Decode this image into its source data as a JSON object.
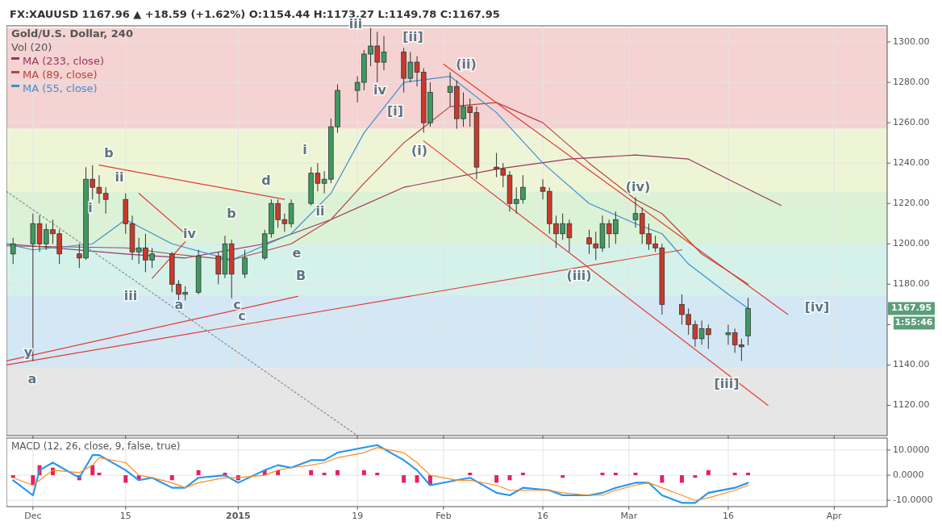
{
  "chart_data": [
    {
      "type": "candlestick",
      "title": "FX:XAUUSD 1167.96 ▲ +18.59 (+1.62%) O:1154.44 H:1173.27 L:1149.78 C:1167.95",
      "subtitle": "Gold/U.S. Dollar, 240",
      "x": [
        "2014-11-28",
        "2014-12-01",
        "2014-12-02",
        "2014-12-03",
        "2014-12-04",
        "2014-12-05",
        "2014-12-08",
        "2014-12-09",
        "2014-12-10",
        "2014-12-11",
        "2014-12-12",
        "2014-12-15",
        "2014-12-16",
        "2014-12-17",
        "2014-12-18",
        "2014-12-19",
        "2014-12-22",
        "2014-12-23",
        "2014-12-24",
        "2014-12-26",
        "2014-12-29",
        "2014-12-30",
        "2014-12-31",
        "2015-01-02",
        "2015-01-05",
        "2015-01-06",
        "2015-01-07",
        "2015-01-08",
        "2015-01-09",
        "2015-01-12",
        "2015-01-13",
        "2015-01-14",
        "2015-01-15",
        "2015-01-16",
        "2015-01-19",
        "2015-01-20",
        "2015-01-21",
        "2015-01-22",
        "2015-01-23",
        "2015-01-26",
        "2015-01-27",
        "2015-01-28",
        "2015-01-29",
        "2015-01-30",
        "2015-02-02",
        "2015-02-03",
        "2015-02-04",
        "2015-02-05",
        "2015-02-06",
        "2015-02-09",
        "2015-02-10",
        "2015-02-11",
        "2015-02-12",
        "2015-02-13",
        "2015-02-16",
        "2015-02-17",
        "2015-02-18",
        "2015-02-19",
        "2015-02-20",
        "2015-02-23",
        "2015-02-24",
        "2015-02-25",
        "2015-02-26",
        "2015-02-27",
        "2015-03-02",
        "2015-03-03",
        "2015-03-04",
        "2015-03-05",
        "2015-03-06",
        "2015-03-09",
        "2015-03-10",
        "2015-03-11",
        "2015-03-12",
        "2015-03-13",
        "2015-03-16",
        "2015-03-17",
        "2015-03-18",
        "2015-03-19"
      ],
      "ohlc": [
        [
          1195,
          1203,
          1190,
          1200
        ],
        [
          1200,
          1215,
          1142,
          1210
        ],
        [
          1210,
          1214,
          1196,
          1200
        ],
        [
          1200,
          1210,
          1197,
          1207
        ],
        [
          1207,
          1212,
          1200,
          1205
        ],
        [
          1205,
          1207,
          1190,
          1195
        ],
        [
          1195,
          1200,
          1188,
          1193
        ],
        [
          1193,
          1238,
          1192,
          1232
        ],
        [
          1232,
          1239,
          1222,
          1228
        ],
        [
          1228,
          1234,
          1220,
          1225
        ],
        [
          1225,
          1228,
          1215,
          1222
        ],
        [
          1222,
          1225,
          1205,
          1210
        ],
        [
          1210,
          1214,
          1192,
          1196
        ],
        [
          1196,
          1203,
          1190,
          1198
        ],
        [
          1198,
          1205,
          1186,
          1192
        ],
        [
          1192,
          1198,
          1188,
          1195
        ],
        [
          1195,
          1196,
          1176,
          1180
        ],
        [
          1180,
          1182,
          1172,
          1175
        ],
        [
          1175,
          1179,
          1172,
          1176
        ],
        [
          1176,
          1197,
          1175,
          1194
        ],
        [
          1194,
          1196,
          1180,
          1185
        ],
        [
          1185,
          1204,
          1183,
          1200
        ],
        [
          1200,
          1202,
          1173,
          1185
        ],
        [
          1185,
          1197,
          1183,
          1193
        ],
        [
          1193,
          1207,
          1192,
          1205
        ],
        [
          1205,
          1222,
          1203,
          1220
        ],
        [
          1220,
          1222,
          1208,
          1212
        ],
        [
          1212,
          1215,
          1206,
          1210
        ],
        [
          1210,
          1222,
          1208,
          1220
        ],
        [
          1220,
          1238,
          1219,
          1235
        ],
        [
          1235,
          1240,
          1226,
          1230
        ],
        [
          1230,
          1236,
          1225,
          1232
        ],
        [
          1232,
          1262,
          1230,
          1258
        ],
        [
          1258,
          1279,
          1255,
          1276
        ],
        [
          1276,
          1283,
          1270,
          1280
        ],
        [
          1280,
          1296,
          1276,
          1294
        ],
        [
          1294,
          1307,
          1288,
          1298
        ],
        [
          1298,
          1305,
          1280,
          1290
        ],
        [
          1290,
          1303,
          1286,
          1295
        ],
        [
          1295,
          1297,
          1275,
          1282
        ],
        [
          1282,
          1295,
          1280,
          1290
        ],
        [
          1290,
          1293,
          1278,
          1285
        ],
        [
          1285,
          1287,
          1255,
          1260
        ],
        [
          1260,
          1280,
          1258,
          1275
        ],
        [
          1275,
          1285,
          1268,
          1278
        ],
        [
          1278,
          1281,
          1257,
          1262
        ],
        [
          1262,
          1275,
          1258,
          1268
        ],
        [
          1268,
          1272,
          1258,
          1265
        ],
        [
          1265,
          1268,
          1232,
          1238
        ],
        [
          1238,
          1245,
          1233,
          1237
        ],
        [
          1237,
          1240,
          1228,
          1234
        ],
        [
          1234,
          1236,
          1216,
          1220
        ],
        [
          1220,
          1228,
          1215,
          1222
        ],
        [
          1222,
          1234,
          1220,
          1228
        ],
        [
          1228,
          1232,
          1222,
          1226
        ],
        [
          1226,
          1228,
          1205,
          1210
        ],
        [
          1210,
          1214,
          1198,
          1205
        ],
        [
          1205,
          1215,
          1202,
          1210
        ],
        [
          1210,
          1212,
          1196,
          1203
        ],
        [
          1203,
          1207,
          1195,
          1200
        ],
        [
          1200,
          1206,
          1192,
          1198
        ],
        [
          1198,
          1214,
          1196,
          1210
        ],
        [
          1210,
          1212,
          1198,
          1205
        ],
        [
          1205,
          1216,
          1200,
          1212
        ],
        [
          1212,
          1223,
          1208,
          1215
        ],
        [
          1215,
          1218,
          1200,
          1205
        ],
        [
          1205,
          1210,
          1197,
          1200
        ],
        [
          1200,
          1204,
          1196,
          1198
        ],
        [
          1198,
          1200,
          1165,
          1170
        ],
        [
          1170,
          1175,
          1160,
          1165
        ],
        [
          1165,
          1168,
          1155,
          1160
        ],
        [
          1160,
          1162,
          1149,
          1153
        ],
        [
          1153,
          1162,
          1150,
          1158
        ],
        [
          1158,
          1160,
          1148,
          1155
        ],
        [
          1155,
          1160,
          1150,
          1156
        ],
        [
          1156,
          1158,
          1146,
          1150
        ],
        [
          1150,
          1153,
          1142,
          1149
        ],
        [
          1154.44,
          1173.27,
          1149.78,
          1167.95
        ]
      ],
      "series": [
        {
          "type": "line",
          "name": "MA (233, close)",
          "color": "#9b3560",
          "x": [
            "2014-11-27",
            "2014-12-15",
            "2014-12-24",
            "2015-01-05",
            "2015-01-15",
            "2015-01-26",
            "2015-02-09",
            "2015-02-20",
            "2015-03-02",
            "2015-03-10",
            "2015-03-16",
            "2015-03-24"
          ],
          "values": [
            1200,
            1195,
            1193,
            1200,
            1212,
            1228,
            1237,
            1242,
            1244,
            1242,
            1232,
            1219
          ]
        },
        {
          "type": "line",
          "name": "MA (89, close)",
          "color": "#b5463a",
          "x": [
            "2014-11-27",
            "2014-12-15",
            "2014-12-22",
            "2014-12-31",
            "2015-01-09",
            "2015-01-15",
            "2015-01-20",
            "2015-01-26",
            "2015-02-02",
            "2015-02-09",
            "2015-02-16",
            "2015-02-23",
            "2015-03-02",
            "2015-03-06",
            "2015-03-12",
            "2015-03-19"
          ],
          "values": [
            1199,
            1198,
            1195,
            1192,
            1200,
            1212,
            1230,
            1250,
            1268,
            1270,
            1260,
            1240,
            1222,
            1215,
            1195,
            1180
          ]
        },
        {
          "type": "line",
          "name": "MA (55, close)",
          "color": "#3d8fd1",
          "x": [
            "2014-11-27",
            "2014-12-01",
            "2014-12-10",
            "2014-12-15",
            "2014-12-22",
            "2014-12-31",
            "2015-01-09",
            "2015-01-15",
            "2015-01-20",
            "2015-01-26",
            "2015-02-02",
            "2015-02-09",
            "2015-02-16",
            "2015-02-23",
            "2015-03-02",
            "2015-03-06",
            "2015-03-10",
            "2015-03-16",
            "2015-03-19"
          ],
          "values": [
            1200,
            1197,
            1200,
            1212,
            1200,
            1192,
            1205,
            1225,
            1255,
            1280,
            1283,
            1265,
            1240,
            1220,
            1210,
            1205,
            1190,
            1175,
            1168
          ]
        },
        {
          "type": "line",
          "color": "#e53935",
          "x": [
            "2015-02-01",
            "2015-03-25"
          ],
          "values": [
            1289,
            1165
          ]
        },
        {
          "type": "line",
          "color": "#e53935",
          "x": [
            "2015-01-29",
            "2015-03-22"
          ],
          "values": [
            1251,
            1120
          ]
        },
        {
          "type": "line",
          "color": "#e53935",
          "x": [
            "2014-11-27",
            "2015-03-09"
          ],
          "values": [
            1140,
            1197
          ]
        },
        {
          "type": "line",
          "color": "#e53935",
          "x": [
            "2014-11-27",
            "2015-01-10"
          ],
          "values": [
            1142,
            1174
          ]
        },
        {
          "type": "line",
          "color": "#e53935",
          "x": [
            "2014-12-11",
            "2015-01-08"
          ],
          "values": [
            1239,
            1222
          ]
        },
        {
          "type": "line",
          "color": "#e53935",
          "x": [
            "2014-12-17",
            "2014-12-24"
          ],
          "values": [
            1225,
            1205
          ]
        },
        {
          "type": "line",
          "color": "#e53935",
          "x": [
            "2014-12-19",
            "2014-12-24"
          ],
          "values": [
            1183,
            1201
          ]
        },
        {
          "type": "line",
          "color": "#8a8a8a",
          "line_style": "dotted",
          "x": [
            "2014-11-27",
            "2015-01-19"
          ],
          "values": [
            1226,
            1105
          ]
        }
      ],
      "bands": [
        {
          "axis": "y",
          "from": 1257,
          "to": 1307,
          "color": "#f4d3d2"
        },
        {
          "axis": "y",
          "from": 1226,
          "to": 1257,
          "color": "#eef5d6"
        },
        {
          "axis": "y",
          "from": 1200,
          "to": 1226,
          "color": "#dcf2d6"
        },
        {
          "axis": "y",
          "from": 1174.5,
          "to": 1200,
          "color": "#d4f2ea"
        },
        {
          "axis": "y",
          "from": 1138.5,
          "to": 1174.5,
          "color": "#d3e8f4"
        },
        {
          "axis": "y",
          "from": 1105,
          "to": 1138.5,
          "color": "#e6e6e6"
        }
      ],
      "annotations": [
        "Vol (20)",
        "1:55:46",
        "1167.95",
        "a",
        "y",
        "b",
        "ii",
        "i",
        "iii",
        "iv",
        "a",
        "b",
        "c",
        "c",
        "d",
        "e",
        "B",
        "i",
        "ii",
        "iii",
        "iv",
        "[ii]",
        "[i]",
        "(i)",
        "(ii)",
        "(iii)",
        "(iv)",
        "[iii]",
        "[iv]"
      ],
      "xlim": [
        "2014-11-27",
        "2015-04-09"
      ],
      "xticks": [
        {
          "value": "2014-12-01",
          "label": null
        },
        {
          "value": "2014-12-15",
          "label": null
        },
        {
          "value": "2015-01-01",
          "label": null
        },
        {
          "value": "2015-01-19",
          "label": null
        },
        {
          "value": "2015-02-01",
          "label": null
        },
        {
          "value": "2015-02-16",
          "label": null
        },
        {
          "value": "2015-03-01",
          "label": null
        },
        {
          "value": "2015-03-16",
          "label": null
        },
        {
          "value": "2015-04-01",
          "label": null
        }
      ],
      "ylim": [
        1105,
        1308
      ],
      "yticks": [
        {
          "value": 1120,
          "label": "1120.00"
        },
        {
          "value": 1140,
          "label": "1140.00"
        },
        {
          "value": 1160,
          "label": null
        },
        {
          "value": 1180,
          "label": "1180.00"
        },
        {
          "value": 1200,
          "label": "1200.00"
        },
        {
          "value": 1220,
          "label": "1220.00"
        },
        {
          "value": 1240,
          "label": "1240.00"
        },
        {
          "value": 1260,
          "label": "1260.00"
        },
        {
          "value": 1280,
          "label": "1280.00"
        },
        {
          "value": 1300,
          "label": "1300.00"
        }
      ],
      "grid": true,
      "legend": "top left",
      "tick_labels": "y"
    },
    {
      "type": "line",
      "title": "MACD (12, 26, close, 9, false, true)",
      "x": [
        "2014-11-28",
        "2014-12-01",
        "2014-12-02",
        "2014-12-04",
        "2014-12-08",
        "2014-12-10",
        "2014-12-11",
        "2014-12-15",
        "2014-12-17",
        "2014-12-19",
        "2014-12-22",
        "2014-12-24",
        "2014-12-26",
        "2014-12-30",
        "2015-01-01",
        "2015-01-05",
        "2015-01-07",
        "2015-01-09",
        "2015-01-12",
        "2015-01-14",
        "2015-01-16",
        "2015-01-20",
        "2015-01-22",
        "2015-01-26",
        "2015-01-28",
        "2015-01-30",
        "2015-02-03",
        "2015-02-05",
        "2015-02-09",
        "2015-02-11",
        "2015-02-13",
        "2015-02-17",
        "2015-02-19",
        "2015-02-23",
        "2015-02-25",
        "2015-02-27",
        "2015-03-02",
        "2015-03-04",
        "2015-03-06",
        "2015-03-09",
        "2015-03-11",
        "2015-03-13",
        "2015-03-17",
        "2015-03-19"
      ],
      "series": [
        {
          "type": "bar",
          "color": "#e91e63",
          "values": [
            -1,
            -4,
            4,
            3,
            -2,
            4,
            1,
            -3,
            -2,
            0,
            -2,
            0,
            2,
            1,
            -2,
            2,
            2,
            0,
            2,
            1,
            2,
            2,
            1,
            -3,
            -3,
            -4,
            0,
            1,
            -3,
            -2,
            1,
            0,
            -1,
            0,
            1,
            1,
            1,
            0,
            -3,
            -3,
            -1,
            2,
            1,
            1
          ]
        },
        {
          "color": "#2196f3",
          "values": [
            -2,
            -8,
            2,
            5,
            -1,
            8,
            8,
            2,
            -2,
            -1,
            -5,
            -5,
            -1,
            0,
            -3,
            2,
            4,
            3,
            6,
            6,
            9,
            11,
            12,
            6,
            2,
            -4,
            -2,
            -1,
            -7,
            -8,
            -5,
            -6,
            -8,
            -8,
            -7,
            -5,
            -3,
            -3,
            -8,
            -11,
            -11,
            -7,
            -5,
            -3
          ]
        },
        {
          "color": "#ff8c1a",
          "values": [
            -1,
            -4,
            -2,
            2,
            1,
            4,
            7,
            5,
            0,
            -1,
            -3,
            -5,
            -3,
            -1,
            -1,
            0,
            2,
            3,
            4,
            5,
            7,
            9,
            11,
            9,
            5,
            0,
            -2,
            -2,
            -4,
            -6,
            -6,
            -6,
            -7,
            -8,
            -8,
            -6,
            -4,
            -3,
            -5,
            -8,
            -10,
            -9,
            -6,
            -4
          ]
        }
      ],
      "xlim": [
        "2014-11-27",
        "2015-04-09"
      ],
      "xticks": [
        {
          "value": "2014-12-01",
          "label": "Dec"
        },
        {
          "value": "2014-12-15",
          "label": "15"
        },
        {
          "value": "2015-01-01",
          "label": "2015"
        },
        {
          "value": "2015-01-19",
          "label": "19"
        },
        {
          "value": "2015-02-01",
          "label": "Feb"
        },
        {
          "value": "2015-02-16",
          "label": "16"
        },
        {
          "value": "2015-03-01",
          "label": "Mar"
        },
        {
          "value": "2015-03-16",
          "label": "16"
        },
        {
          "value": "2015-04-01",
          "label": "Apr"
        }
      ],
      "ylim": [
        -12.5,
        14.8
      ],
      "yticks": [
        {
          "value": -10,
          "label": "-10.0000"
        },
        {
          "value": 0,
          "label": "0.0000"
        },
        {
          "value": 10,
          "label": "10.0000"
        }
      ],
      "grid": true
    }
  ]
}
